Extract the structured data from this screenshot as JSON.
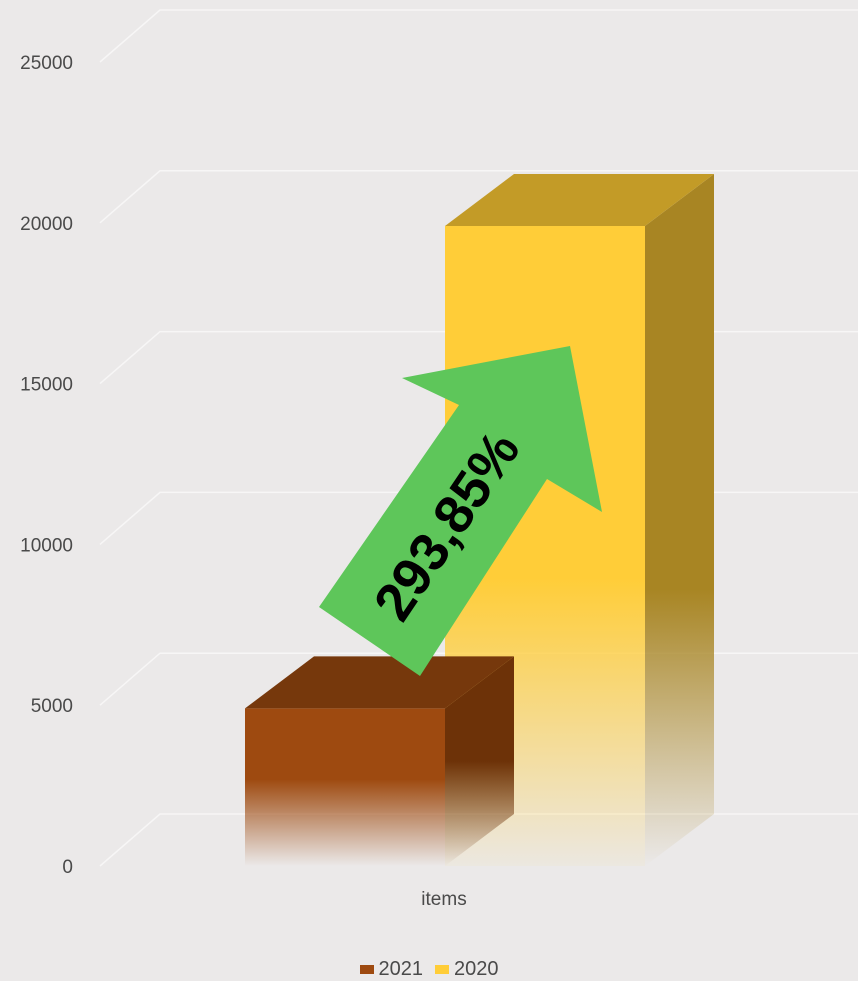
{
  "chart_data": {
    "type": "bar",
    "categories": [
      "items"
    ],
    "series": [
      {
        "name": "2021",
        "values": [
          4900
        ],
        "color": "#9e4a10"
      },
      {
        "name": "2020",
        "values": [
          19900
        ],
        "color": "#ffcd38"
      }
    ],
    "ylim": [
      0,
      25000
    ],
    "yticks": [
      0,
      5000,
      10000,
      15000,
      20000,
      25000
    ],
    "grid": true,
    "legend_position": "bottom",
    "annotation": {
      "text": "293,85%",
      "color": "#5ec65a"
    },
    "style": "3d-column"
  }
}
